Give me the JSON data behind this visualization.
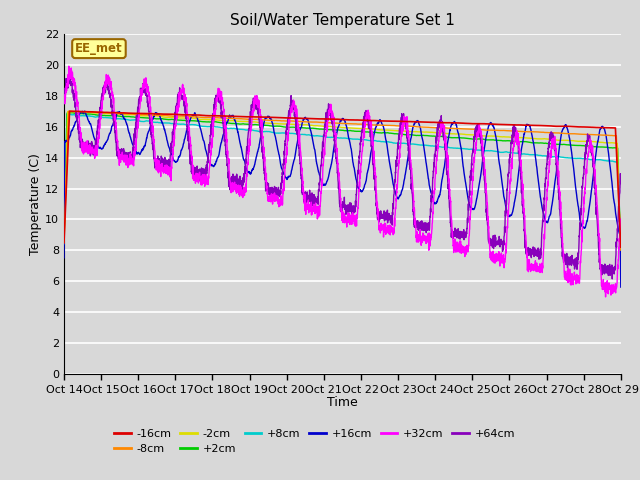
{
  "title": "Soil/Water Temperature Set 1",
  "xlabel": "Time",
  "ylabel": "Temperature (C)",
  "ylim": [
    0,
    22
  ],
  "yticks": [
    0,
    2,
    4,
    6,
    8,
    10,
    12,
    14,
    16,
    18,
    20,
    22
  ],
  "background_color": "#d8d8d8",
  "plot_bg_color": "#d8d8d8",
  "grid_color": "#ffffff",
  "annotation_text": "EE_met",
  "annotation_bg": "#ffff99",
  "annotation_border": "#996600",
  "series": {
    "-16cm": {
      "color": "#dd0000"
    },
    "-8cm": {
      "color": "#ff8800"
    },
    "-2cm": {
      "color": "#dddd00"
    },
    "+2cm": {
      "color": "#00cc00"
    },
    "+8cm": {
      "color": "#00cccc"
    },
    "+16cm": {
      "color": "#0000cc"
    },
    "+32cm": {
      "color": "#ff00ff"
    },
    "+64cm": {
      "color": "#8800bb"
    }
  },
  "x_tick_labels": [
    "Oct 14",
    "Oct 15",
    "Oct 16",
    "Oct 17",
    "Oct 18",
    "Oct 19",
    "Oct 20",
    "Oct 21",
    "Oct 22",
    "Oct 23",
    "Oct 24",
    "Oct 25",
    "Oct 26",
    "Oct 27",
    "Oct 28",
    "Oct 29"
  ],
  "figsize": [
    6.4,
    4.8
  ],
  "dpi": 100
}
